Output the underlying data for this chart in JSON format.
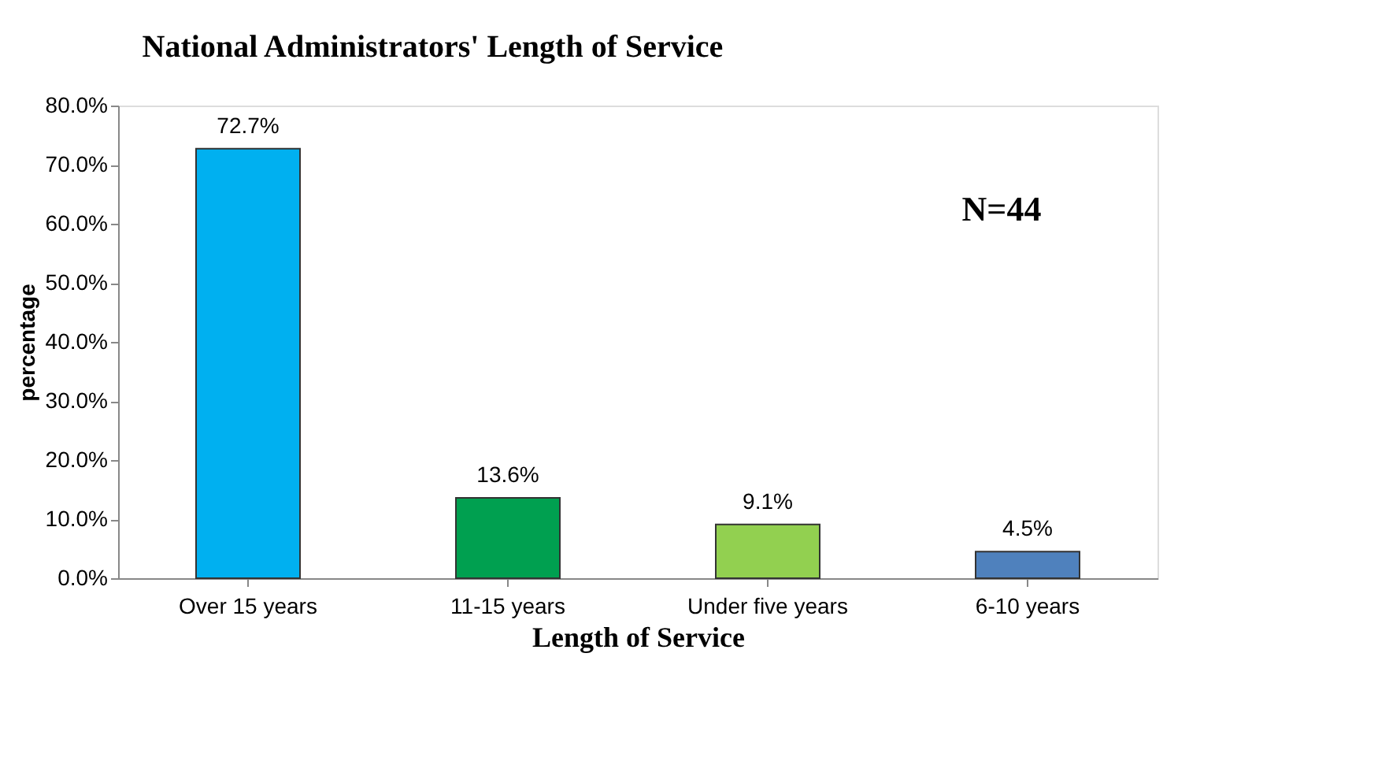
{
  "chart_data": {
    "type": "bar",
    "title": "National Administrators'  Length of Service",
    "xlabel": "Length of Service",
    "ylabel": "percentage",
    "categories": [
      "Over 15 years",
      "11-15 years",
      "Under five years",
      "6-10 years"
    ],
    "values": [
      72.7,
      13.6,
      9.1,
      4.5
    ],
    "colors": [
      "#00b0f0",
      "#00a050",
      "#92d050",
      "#4f81bd"
    ],
    "value_labels": [
      "72.7%",
      "13.6%",
      "9.1%",
      "4.5%"
    ],
    "ylim": [
      0,
      80
    ],
    "yticks": [
      {
        "value": 0,
        "label": "0.0%"
      },
      {
        "value": 10,
        "label": "10.0%"
      },
      {
        "value": 20,
        "label": "20.0%"
      },
      {
        "value": 30,
        "label": "30.0%"
      },
      {
        "value": 40,
        "label": "40.0%"
      },
      {
        "value": 50,
        "label": "50.0%"
      },
      {
        "value": 60,
        "label": "60.0%"
      },
      {
        "value": 70,
        "label": "70.0%"
      },
      {
        "value": 80,
        "label": "80.0%"
      }
    ],
    "annotations": [
      "N=44"
    ],
    "grid": false
  }
}
